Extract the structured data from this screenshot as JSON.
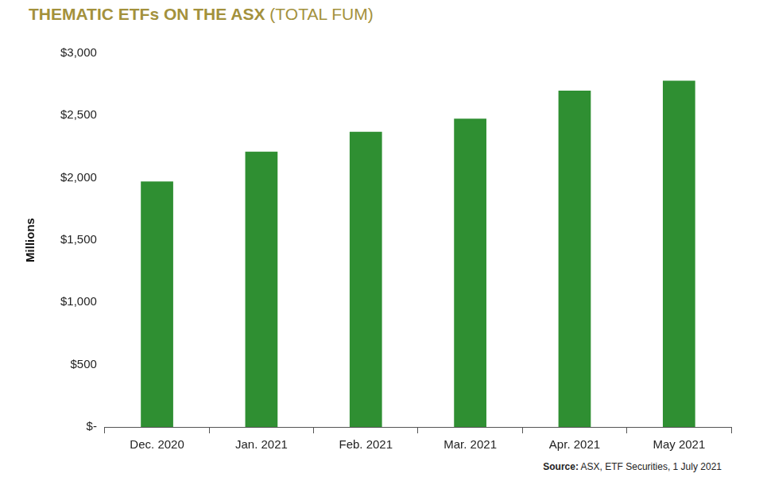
{
  "chart_data": {
    "type": "bar",
    "title": "THEMATIC ETFs ON THE ASX",
    "subtitle": "(TOTAL FUM)",
    "y_label": "Millions",
    "categories": [
      "Dec. 2020",
      "Jan. 2021",
      "Feb. 2021",
      "Mar. 2021",
      "Apr. 2021",
      "May 2021"
    ],
    "values": [
      1970,
      2210,
      2370,
      2475,
      2700,
      2780
    ],
    "color": "#2f8f32",
    "ylim": [
      0,
      3000
    ],
    "yticks": [
      {
        "value": 0,
        "label": "$-"
      },
      {
        "value": 500,
        "label": "$500"
      },
      {
        "value": 1000,
        "label": "$1,000"
      },
      {
        "value": 1500,
        "label": "$1,500"
      },
      {
        "value": 2000,
        "label": "$2,000"
      },
      {
        "value": 2500,
        "label": "$2,500"
      },
      {
        "value": 3000,
        "label": "$3,000"
      }
    ],
    "grid": false,
    "annotations": [
      "Source: ASX, ETF Securities, 1 July 2021"
    ]
  }
}
